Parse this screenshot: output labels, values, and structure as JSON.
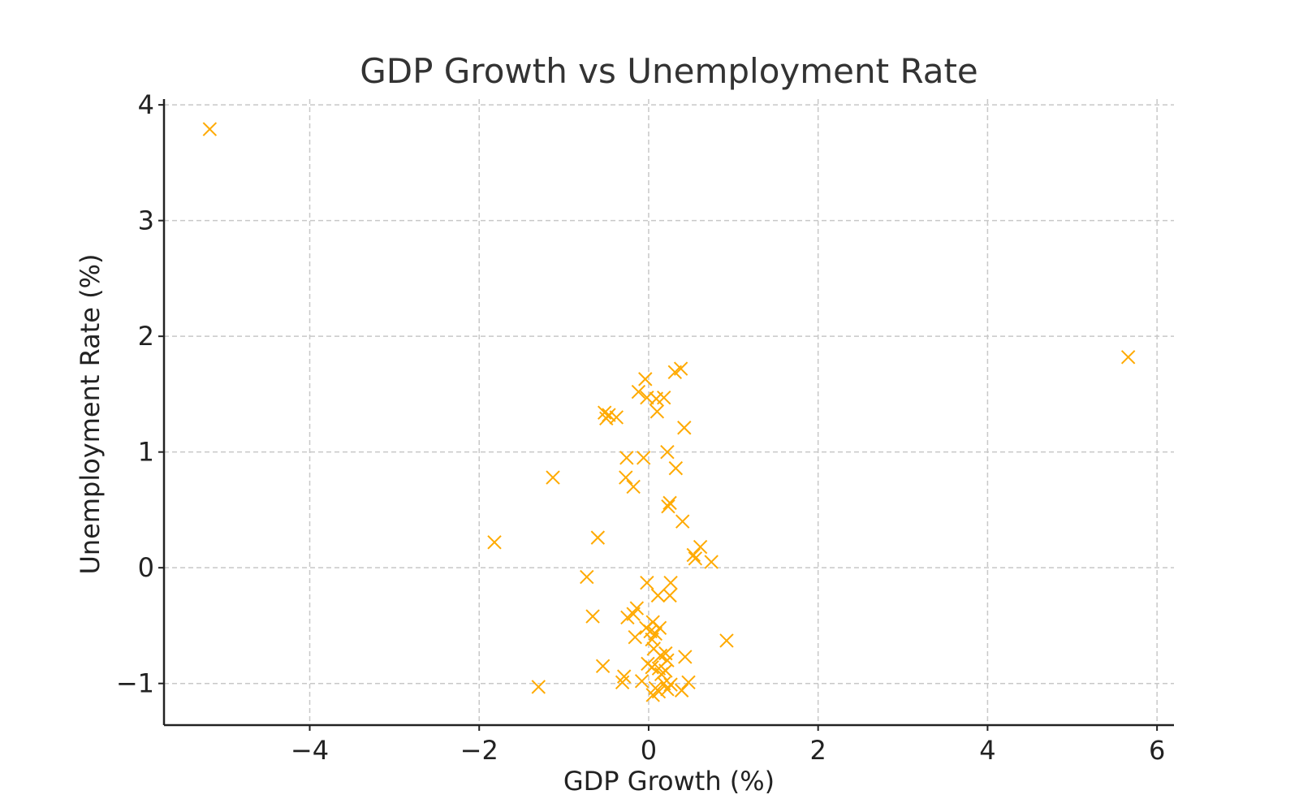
{
  "chart_data": {
    "type": "scatter",
    "title": "GDP Growth vs Unemployment Rate",
    "xlabel": "GDP Growth (%)",
    "ylabel": "Unemployment Rate (%)",
    "xlim": [
      -5.72,
      6.2
    ],
    "ylim": [
      -1.36,
      4.05
    ],
    "x_ticks": [
      {
        "value": -4,
        "label": "−4"
      },
      {
        "value": -2,
        "label": "−2"
      },
      {
        "value": 0,
        "label": "0"
      },
      {
        "value": 2,
        "label": "2"
      },
      {
        "value": 4,
        "label": "4"
      },
      {
        "value": 6,
        "label": "6"
      }
    ],
    "y_ticks": [
      {
        "value": -1,
        "label": "−1"
      },
      {
        "value": 0,
        "label": "0"
      },
      {
        "value": 1,
        "label": "1"
      },
      {
        "value": 2,
        "label": "2"
      },
      {
        "value": 3,
        "label": "3"
      },
      {
        "value": 4,
        "label": "4"
      }
    ],
    "grid": true,
    "marker": "x",
    "color": "#ffaa00",
    "series": [
      {
        "points": [
          {
            "x": -5.18,
            "y": 3.79
          },
          {
            "x": 5.66,
            "y": 1.82
          },
          {
            "x": 0.38,
            "y": 1.72
          },
          {
            "x": 0.31,
            "y": 1.69
          },
          {
            "x": -0.04,
            "y": 1.63
          },
          {
            "x": -0.12,
            "y": 1.52
          },
          {
            "x": 0.18,
            "y": 1.47
          },
          {
            "x": 0.09,
            "y": 1.46
          },
          {
            "x": -0.02,
            "y": 1.47
          },
          {
            "x": -0.52,
            "y": 1.34
          },
          {
            "x": -0.47,
            "y": 1.32
          },
          {
            "x": -0.38,
            "y": 1.3
          },
          {
            "x": -0.5,
            "y": 1.29
          },
          {
            "x": 0.1,
            "y": 1.35
          },
          {
            "x": 0.42,
            "y": 1.21
          },
          {
            "x": 0.22,
            "y": 1.0
          },
          {
            "x": -0.26,
            "y": 0.95
          },
          {
            "x": -0.06,
            "y": 0.95
          },
          {
            "x": 0.32,
            "y": 0.86
          },
          {
            "x": -1.13,
            "y": 0.78
          },
          {
            "x": -0.27,
            "y": 0.78
          },
          {
            "x": -0.18,
            "y": 0.7
          },
          {
            "x": 0.25,
            "y": 0.56
          },
          {
            "x": 0.23,
            "y": 0.53
          },
          {
            "x": 0.4,
            "y": 0.4
          },
          {
            "x": -0.6,
            "y": 0.26
          },
          {
            "x": -1.82,
            "y": 0.22
          },
          {
            "x": 0.61,
            "y": 0.18
          },
          {
            "x": 0.53,
            "y": 0.11
          },
          {
            "x": 0.55,
            "y": 0.08
          },
          {
            "x": 0.74,
            "y": 0.05
          },
          {
            "x": -0.73,
            "y": -0.08
          },
          {
            "x": -0.02,
            "y": -0.13
          },
          {
            "x": 0.26,
            "y": -0.13
          },
          {
            "x": 0.11,
            "y": -0.24
          },
          {
            "x": 0.25,
            "y": -0.24
          },
          {
            "x": -0.14,
            "y": -0.35
          },
          {
            "x": -0.18,
            "y": -0.4
          },
          {
            "x": -0.66,
            "y": -0.42
          },
          {
            "x": -0.25,
            "y": -0.43
          },
          {
            "x": 0.05,
            "y": -0.47
          },
          {
            "x": -0.03,
            "y": -0.52
          },
          {
            "x": 0.13,
            "y": -0.52
          },
          {
            "x": 0.02,
            "y": -0.55
          },
          {
            "x": 0.08,
            "y": -0.57
          },
          {
            "x": 0.04,
            "y": -0.62
          },
          {
            "x": -0.16,
            "y": -0.6
          },
          {
            "x": 0.92,
            "y": -0.63
          },
          {
            "x": 0.06,
            "y": -0.7
          },
          {
            "x": 0.2,
            "y": -0.74
          },
          {
            "x": 0.14,
            "y": -0.76
          },
          {
            "x": 0.43,
            "y": -0.77
          },
          {
            "x": 0.22,
            "y": -0.8
          },
          {
            "x": -0.01,
            "y": -0.83
          },
          {
            "x": -0.54,
            "y": -0.85
          },
          {
            "x": 0.04,
            "y": -0.86
          },
          {
            "x": 0.12,
            "y": -0.87
          },
          {
            "x": 0.2,
            "y": -0.89
          },
          {
            "x": 0.15,
            "y": -0.92
          },
          {
            "x": -0.29,
            "y": -0.94
          },
          {
            "x": -0.31,
            "y": -0.99
          },
          {
            "x": -0.08,
            "y": -0.98
          },
          {
            "x": 0.47,
            "y": -0.99
          },
          {
            "x": 0.18,
            "y": -1.0
          },
          {
            "x": 0.26,
            "y": -1.01
          },
          {
            "x": -1.3,
            "y": -1.03
          },
          {
            "x": 0.08,
            "y": -1.04
          },
          {
            "x": 0.22,
            "y": -1.05
          },
          {
            "x": 0.39,
            "y": -1.06
          },
          {
            "x": 0.12,
            "y": -1.07
          },
          {
            "x": 0.05,
            "y": -1.1
          }
        ]
      }
    ]
  }
}
